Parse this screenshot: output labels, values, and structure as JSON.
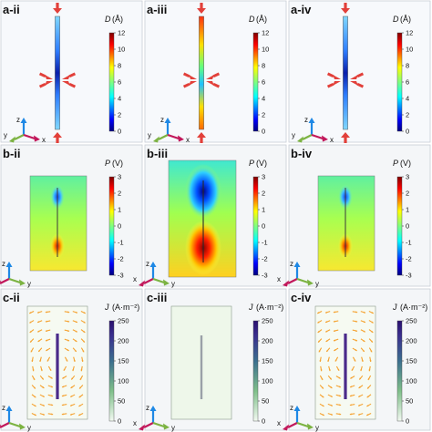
{
  "figure": {
    "rows": [
      {
        "key": "a",
        "quantity": "D",
        "unit": "(Å)",
        "ticks": [
          "12",
          "10",
          "8",
          "6",
          "4",
          "2",
          "0"
        ],
        "colormap": "jet",
        "axes": [
          "y",
          "z",
          "x"
        ],
        "panels": [
          {
            "label": "a-ii",
            "mode": "a-ii"
          },
          {
            "label": "a-iii",
            "mode": "a-iii"
          },
          {
            "label": "a-iv",
            "mode": "a-iv"
          }
        ]
      },
      {
        "key": "b",
        "quantity": "P",
        "unit": "(V)",
        "ticks": [
          "3",
          "2",
          "1",
          "0",
          "-1",
          "-2",
          "-3"
        ],
        "colormap": "jet",
        "axes": [
          "x",
          "z",
          "y"
        ],
        "panels": [
          {
            "label": "b-ii",
            "mode": "b-ii"
          },
          {
            "label": "b-iii",
            "mode": "b-iii"
          },
          {
            "label": "b-iv",
            "mode": "b-iv"
          }
        ]
      },
      {
        "key": "c",
        "quantity": "J",
        "unit": "(A·m⁻²)",
        "ticks": [
          "250",
          "200",
          "150",
          "100",
          "50",
          "0"
        ],
        "colormap": "green-purple",
        "axes": [
          "x",
          "z",
          "y"
        ],
        "panels": [
          {
            "label": "c-ii",
            "mode": "c-ii"
          },
          {
            "label": "c-iii",
            "mode": "c-iii"
          },
          {
            "label": "c-iv",
            "mode": "c-iv"
          }
        ]
      }
    ],
    "colors": {
      "arrow": "#e2403a",
      "axis_x": "#c2185b",
      "axis_y": "#7cb342",
      "axis_z": "#1e88e5",
      "flow": "#f5a230"
    }
  }
}
